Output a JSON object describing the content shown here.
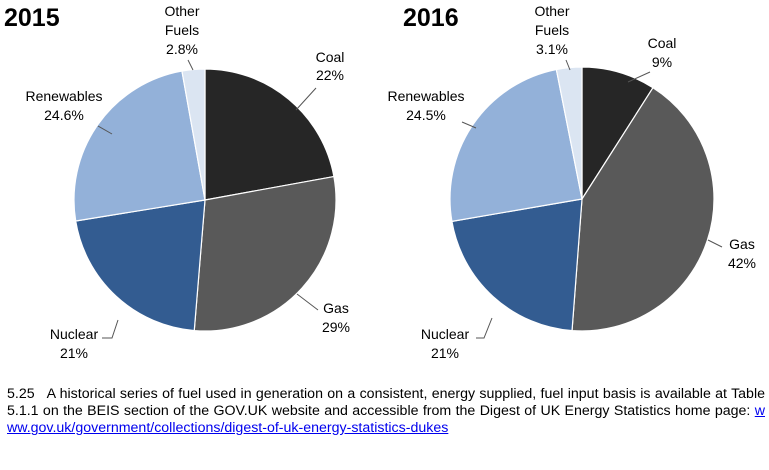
{
  "chart_data": [
    {
      "type": "pie",
      "title": "2015",
      "start_angle_deg": 0,
      "direction": "clockwise",
      "slices": [
        {
          "key": "coal",
          "label": "Coal",
          "value": 22,
          "value_text": "22%",
          "color": "#262626"
        },
        {
          "key": "gas",
          "label": "Gas",
          "value": 29,
          "value_text": "29%",
          "color": "#595959"
        },
        {
          "key": "nuclear",
          "label": "Nuclear",
          "value": 21,
          "value_text": "21%",
          "color": "#335c91"
        },
        {
          "key": "renewables",
          "label": "Renewables",
          "value": 24.6,
          "value_text": "24.6%",
          "color": "#93b1d9"
        },
        {
          "key": "other",
          "label": "Other Fuels",
          "value": 2.8,
          "value_text": "2.8%",
          "color": "#dbe5f2"
        }
      ]
    },
    {
      "type": "pie",
      "title": "2016",
      "start_angle_deg": 0,
      "direction": "clockwise",
      "slices": [
        {
          "key": "coal",
          "label": "Coal",
          "value": 9,
          "value_text": "9%",
          "color": "#262626"
        },
        {
          "key": "gas",
          "label": "Gas",
          "value": 42,
          "value_text": "42%",
          "color": "#595959"
        },
        {
          "key": "nuclear",
          "label": "Nuclear",
          "value": 21,
          "value_text": "21%",
          "color": "#335c91"
        },
        {
          "key": "renewables",
          "label": "Renewables",
          "value": 24.5,
          "value_text": "24.5%",
          "color": "#93b1d9"
        },
        {
          "key": "other",
          "label": "Other Fuels",
          "value": 3.1,
          "value_text": "3.1%",
          "color": "#dbe5f2"
        }
      ]
    }
  ],
  "note": {
    "number": "5.25",
    "text": "A historical series of fuel used in generation on a consistent, energy supplied, fuel input basis is available at Table 5.1.1 on the BEIS section of the GOV.UK website and accessible from the Digest of UK Energy Statistics home page: ",
    "link_text": "www.gov.uk/government/collections/digest-of-uk-energy-statistics-dukes"
  }
}
